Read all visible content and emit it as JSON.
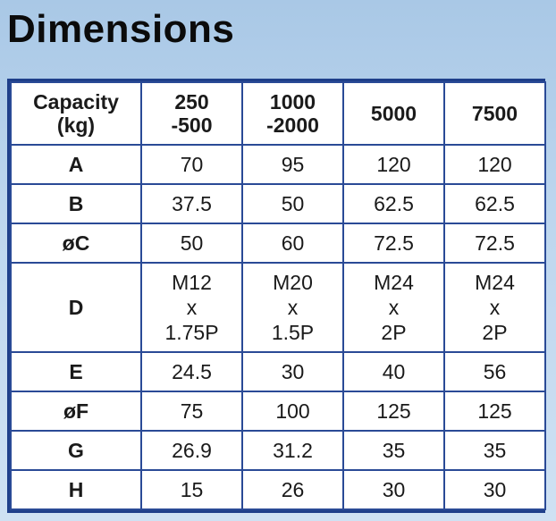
{
  "title": "Dimensions",
  "table": {
    "header": {
      "capacity_line1": "Capacity",
      "capacity_line2": "(kg)",
      "columns": [
        {
          "line1": "250",
          "line2": "-500"
        },
        {
          "line1": "1000",
          "line2": "-2000"
        },
        {
          "line1": "5000",
          "line2": ""
        },
        {
          "line1": "7500",
          "line2": ""
        }
      ]
    },
    "rows": [
      {
        "label": "A",
        "values": [
          "70",
          "95",
          "120",
          "120"
        ]
      },
      {
        "label": "B",
        "values": [
          "37.5",
          "50",
          "62.5",
          "62.5"
        ]
      },
      {
        "label": "øC",
        "values": [
          "50",
          "60",
          "72.5",
          "72.5"
        ]
      },
      {
        "label": "D",
        "values": [
          {
            "l1": "M12",
            "l2": "x",
            "l3": "1.75P"
          },
          {
            "l1": "M20",
            "l2": "x",
            "l3": "1.5P"
          },
          {
            "l1": "M24",
            "l2": "x",
            "l3": "2P"
          },
          {
            "l1": "M24",
            "l2": "x",
            "l3": "2P"
          }
        ]
      },
      {
        "label": "E",
        "values": [
          "24.5",
          "30",
          "40",
          "56"
        ]
      },
      {
        "label": "øF",
        "values": [
          "75",
          "100",
          "125",
          "125"
        ]
      },
      {
        "label": "G",
        "values": [
          "26.9",
          "31.2",
          "35",
          "35"
        ]
      },
      {
        "label": "H",
        "values": [
          "15",
          "26",
          "30",
          "30"
        ]
      }
    ]
  }
}
